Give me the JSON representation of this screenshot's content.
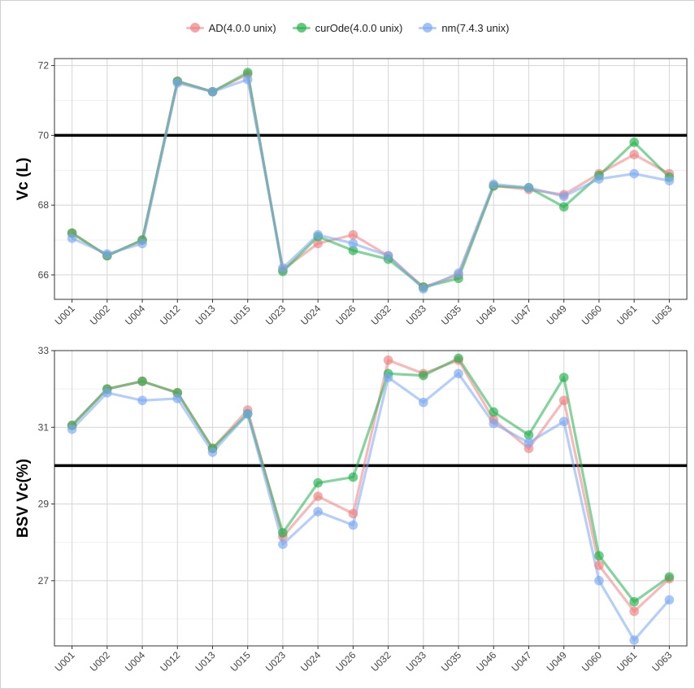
{
  "legend": [
    {
      "name": "AD(4.0.0 unix)",
      "color": "#f08080"
    },
    {
      "name": "curOde(4.0.0 unix)",
      "color": "#22b14c"
    },
    {
      "name": "nm(7.4.3 unix)",
      "color": "#7aa8f2"
    }
  ],
  "chart_data": [
    {
      "type": "line",
      "ylabel": "Vc (L)",
      "categories": [
        "U001",
        "U002",
        "U004",
        "U012",
        "U013",
        "U015",
        "U023",
        "U024",
        "U026",
        "U032",
        "U033",
        "U035",
        "U046",
        "U047",
        "U049",
        "U060",
        "U061",
        "U063"
      ],
      "ylim": [
        65.3,
        72.2
      ],
      "yticks": [
        66,
        68,
        70,
        72
      ],
      "reference_line": 70,
      "grid": true,
      "legend_position": "top",
      "series": [
        {
          "name": "AD(4.0.0 unix)",
          "color": "#f08080",
          "values": [
            67.2,
            66.55,
            67.0,
            71.55,
            71.25,
            71.75,
            66.15,
            66.9,
            67.15,
            66.55,
            65.65,
            66.0,
            68.55,
            68.45,
            68.3,
            68.9,
            69.45,
            68.9
          ]
        },
        {
          "name": "curOde(4.0.0 unix)",
          "color": "#22b14c",
          "values": [
            67.2,
            66.55,
            67.0,
            71.55,
            71.25,
            71.8,
            66.1,
            67.1,
            66.7,
            66.45,
            65.65,
            65.9,
            68.55,
            68.5,
            67.95,
            68.85,
            69.8,
            68.8
          ]
        },
        {
          "name": "nm(7.4.3 unix)",
          "color": "#7aa8f2",
          "values": [
            67.05,
            66.6,
            66.9,
            71.5,
            71.25,
            71.6,
            66.2,
            67.15,
            66.9,
            66.55,
            65.6,
            66.05,
            68.6,
            68.5,
            68.25,
            68.75,
            68.9,
            68.7
          ]
        }
      ]
    },
    {
      "type": "line",
      "ylabel": "BSV Vc(%)",
      "categories": [
        "U001",
        "U002",
        "U004",
        "U012",
        "U013",
        "U015",
        "U023",
        "U024",
        "U026",
        "U032",
        "U033",
        "U035",
        "U046",
        "U047",
        "U049",
        "U060",
        "U061",
        "U063"
      ],
      "ylim": [
        25.3,
        33.0
      ],
      "yticks": [
        27,
        29,
        31,
        33
      ],
      "reference_line": 30,
      "grid": true,
      "series": [
        {
          "name": "AD(4.0.0 unix)",
          "color": "#f08080",
          "values": [
            31.05,
            32.0,
            32.2,
            31.9,
            30.45,
            31.45,
            28.15,
            29.2,
            28.75,
            32.75,
            32.4,
            32.75,
            31.2,
            30.45,
            31.7,
            27.4,
            26.2,
            27.05
          ]
        },
        {
          "name": "curOde(4.0.0 unix)",
          "color": "#22b14c",
          "values": [
            31.05,
            32.0,
            32.2,
            31.9,
            30.45,
            31.35,
            28.25,
            29.55,
            29.7,
            32.4,
            32.35,
            32.8,
            31.4,
            30.8,
            32.3,
            27.65,
            26.45,
            27.1
          ]
        },
        {
          "name": "nm(7.4.3 unix)",
          "color": "#7aa8f2",
          "values": [
            30.95,
            31.9,
            31.7,
            31.75,
            30.35,
            31.35,
            27.95,
            28.8,
            28.45,
            32.3,
            31.65,
            32.4,
            31.1,
            30.6,
            31.15,
            27.0,
            25.45,
            26.5
          ]
        }
      ]
    }
  ]
}
